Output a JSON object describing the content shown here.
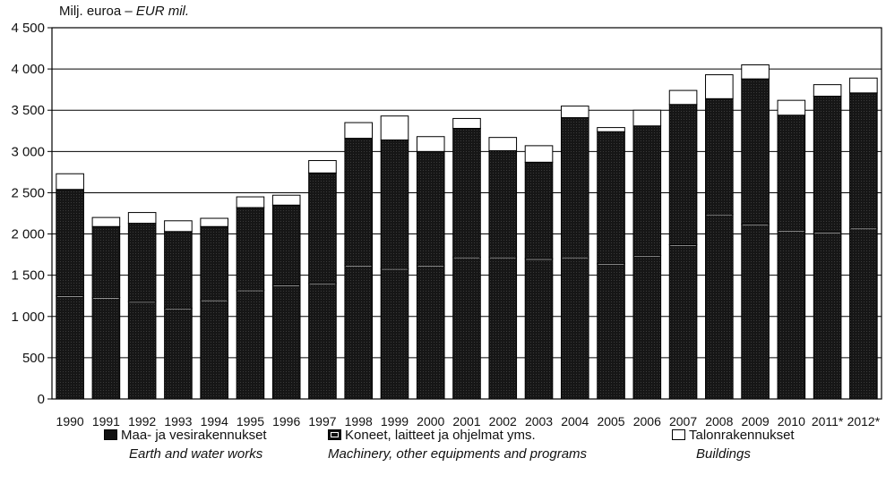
{
  "chart_data": {
    "type": "bar",
    "stacked": true,
    "unit_label": "Milj. euroa –",
    "unit_label_en": "EUR mil.",
    "categories": [
      "1990",
      "1991",
      "1992",
      "1993",
      "1994",
      "1995",
      "1996",
      "1997",
      "1998",
      "1999",
      "2000",
      "2001",
      "2002",
      "2003",
      "2004",
      "2005",
      "2006",
      "2007",
      "2008",
      "2009",
      "2010",
      "2011*",
      "2012*"
    ],
    "ylim": [
      0,
      4500
    ],
    "yticks": [
      0,
      500,
      1000,
      1500,
      2000,
      2500,
      3000,
      3500,
      4000,
      4500
    ],
    "ytick_labels": [
      "0",
      "500",
      "1 000",
      "1 500",
      "2 000",
      "2 500",
      "3 000",
      "3 500",
      "4 000",
      "4 500"
    ],
    "grid": true,
    "legend_position": "bottom",
    "series": [
      {
        "name": "Maa- ja vesirakennukset",
        "name_en": "Earth and water works",
        "color": "#111111",
        "values": [
          1250,
          1230,
          1180,
          1100,
          1200,
          1320,
          1380,
          1400,
          1620,
          1580,
          1620,
          1720,
          1720,
          1700,
          1720,
          1640,
          1740,
          1870,
          2240,
          2120,
          2040,
          2020,
          2070
        ]
      },
      {
        "name": "Koneet, laitteet ja ohjelmat yms.",
        "name_en": "Machinery, other equipments and programs",
        "color": "#1e1e1e",
        "values": [
          1290,
          860,
          950,
          930,
          890,
          1000,
          970,
          1340,
          1540,
          1560,
          1380,
          1560,
          1290,
          1170,
          1690,
          1600,
          1570,
          1700,
          1400,
          1760,
          1400,
          1650,
          1640
        ]
      },
      {
        "name": "Talonrakennukset",
        "name_en": "Buildings",
        "color": "#ffffff",
        "values": [
          190,
          110,
          130,
          130,
          100,
          130,
          120,
          150,
          190,
          290,
          180,
          120,
          160,
          200,
          140,
          50,
          190,
          170,
          290,
          170,
          180,
          140,
          180
        ]
      }
    ]
  }
}
